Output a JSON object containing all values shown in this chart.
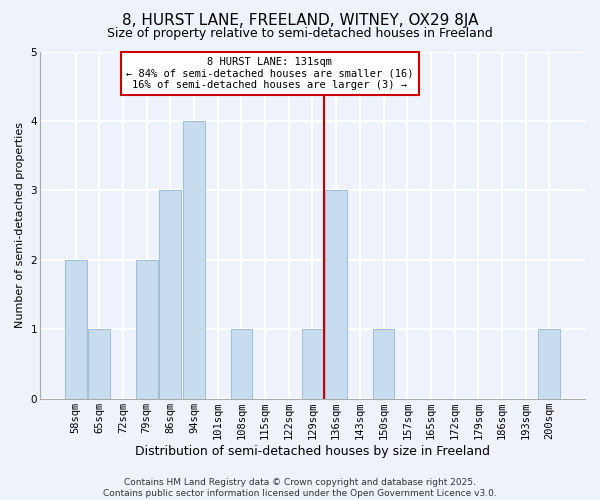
{
  "title": "8, HURST LANE, FREELAND, WITNEY, OX29 8JA",
  "subtitle": "Size of property relative to semi-detached houses in Freeland",
  "xlabel": "Distribution of semi-detached houses by size in Freeland",
  "ylabel": "Number of semi-detached properties",
  "categories": [
    "58sqm",
    "65sqm",
    "72sqm",
    "79sqm",
    "86sqm",
    "94sqm",
    "101sqm",
    "108sqm",
    "115sqm",
    "122sqm",
    "129sqm",
    "136sqm",
    "143sqm",
    "150sqm",
    "157sqm",
    "165sqm",
    "172sqm",
    "179sqm",
    "186sqm",
    "193sqm",
    "200sqm"
  ],
  "values": [
    2,
    1,
    0,
    2,
    3,
    4,
    0,
    1,
    0,
    0,
    1,
    3,
    0,
    1,
    0,
    0,
    0,
    0,
    0,
    0,
    1
  ],
  "bar_color": "#C8DCF0",
  "bar_edgecolor": "#A0BED8",
  "highlight_line_color": "#CC0000",
  "highlight_bar_index": 11,
  "annotation_title": "8 HURST LANE: 131sqm",
  "annotation_line1": "← 84% of semi-detached houses are smaller (16)",
  "annotation_line2": "16% of semi-detached houses are larger (3) →",
  "annotation_box_edgecolor": "#CC0000",
  "annotation_box_facecolor": "#FFFFFF",
  "ylim": [
    0,
    5
  ],
  "yticks": [
    0,
    1,
    2,
    3,
    4,
    5
  ],
  "background_color": "#EEF2FA",
  "grid_color": "#FFFFFF",
  "footer_line1": "Contains HM Land Registry data © Crown copyright and database right 2025.",
  "footer_line2": "Contains public sector information licensed under the Open Government Licence v3.0.",
  "title_fontsize": 11,
  "subtitle_fontsize": 9,
  "xlabel_fontsize": 9,
  "ylabel_fontsize": 8,
  "tick_fontsize": 7.5,
  "annotation_fontsize": 7.5,
  "footer_fontsize": 6.5
}
